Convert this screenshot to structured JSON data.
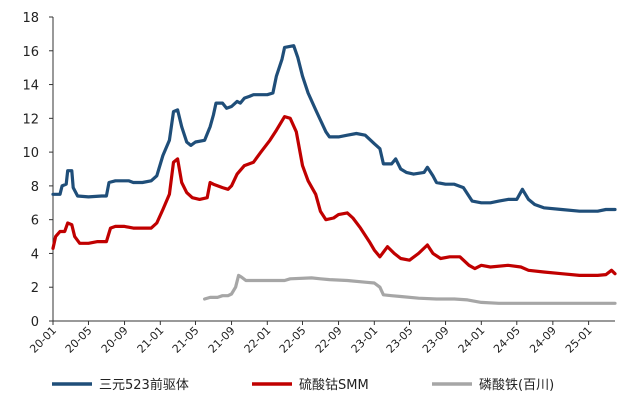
{
  "chart_data": {
    "type": "line",
    "title": "",
    "xlabel": "",
    "ylabel": "",
    "ylim": [
      0,
      18
    ],
    "yticks": [
      0,
      2,
      4,
      6,
      8,
      10,
      12,
      14,
      16,
      18
    ],
    "x_range": [
      "2020-01",
      "2025-04"
    ],
    "xtick_labels": [
      "20-01",
      "20-05",
      "20-09",
      "21-01",
      "21-05",
      "21-09",
      "22-01",
      "22-05",
      "22-09",
      "23-01",
      "23-05",
      "23-09",
      "24-01",
      "24-05",
      "24-09",
      "25-01"
    ],
    "legend_position": "bottom",
    "grid": false,
    "series": [
      {
        "name": "三元523前驱体",
        "color": "#1f4e79",
        "points": [
          [
            "2020-01-01",
            7.5
          ],
          [
            "2020-01-25",
            7.5
          ],
          [
            "2020-02-01",
            8.0
          ],
          [
            "2020-02-15",
            8.1
          ],
          [
            "2020-02-20",
            8.9
          ],
          [
            "2020-03-05",
            8.9
          ],
          [
            "2020-03-10",
            7.9
          ],
          [
            "2020-03-25",
            7.4
          ],
          [
            "2020-05-01",
            7.35
          ],
          [
            "2020-06-15",
            7.4
          ],
          [
            "2020-07-01",
            7.4
          ],
          [
            "2020-07-10",
            8.2
          ],
          [
            "2020-08-01",
            8.3
          ],
          [
            "2020-09-15",
            8.3
          ],
          [
            "2020-10-01",
            8.2
          ],
          [
            "2020-11-01",
            8.2
          ],
          [
            "2020-12-01",
            8.3
          ],
          [
            "2020-12-20",
            8.6
          ],
          [
            "2021-01-10",
            9.8
          ],
          [
            "2021-02-01",
            10.7
          ],
          [
            "2021-02-15",
            12.4
          ],
          [
            "2021-03-01",
            12.5
          ],
          [
            "2021-03-15",
            11.5
          ],
          [
            "2021-04-01",
            10.6
          ],
          [
            "2021-04-15",
            10.4
          ],
          [
            "2021-05-01",
            10.6
          ],
          [
            "2021-06-01",
            10.7
          ],
          [
            "2021-06-20",
            11.5
          ],
          [
            "2021-07-01",
            12.2
          ],
          [
            "2021-07-10",
            12.9
          ],
          [
            "2021-08-01",
            12.9
          ],
          [
            "2021-08-15",
            12.6
          ],
          [
            "2021-09-01",
            12.7
          ],
          [
            "2021-09-20",
            13.0
          ],
          [
            "2021-10-01",
            12.9
          ],
          [
            "2021-10-15",
            13.2
          ],
          [
            "2021-11-01",
            13.3
          ],
          [
            "2021-11-15",
            13.4
          ],
          [
            "2022-01-01",
            13.4
          ],
          [
            "2022-01-20",
            13.5
          ],
          [
            "2022-02-01",
            14.5
          ],
          [
            "2022-02-20",
            15.5
          ],
          [
            "2022-03-01",
            16.2
          ],
          [
            "2022-04-01",
            16.3
          ],
          [
            "2022-04-15",
            15.6
          ],
          [
            "2022-05-01",
            14.5
          ],
          [
            "2022-05-20",
            13.5
          ],
          [
            "2022-06-15",
            12.5
          ],
          [
            "2022-07-01",
            11.9
          ],
          [
            "2022-07-20",
            11.2
          ],
          [
            "2022-08-01",
            10.9
          ],
          [
            "2022-09-01",
            10.9
          ],
          [
            "2022-10-01",
            11.0
          ],
          [
            "2022-11-01",
            11.1
          ],
          [
            "2022-12-01",
            11.0
          ],
          [
            "2023-01-01",
            10.5
          ],
          [
            "2023-01-20",
            10.2
          ],
          [
            "2023-02-01",
            9.3
          ],
          [
            "2023-03-01",
            9.3
          ],
          [
            "2023-03-15",
            9.6
          ],
          [
            "2023-04-01",
            9.0
          ],
          [
            "2023-04-20",
            8.8
          ],
          [
            "2023-05-15",
            8.7
          ],
          [
            "2023-06-20",
            8.8
          ],
          [
            "2023-07-01",
            9.1
          ],
          [
            "2023-07-20",
            8.6
          ],
          [
            "2023-08-01",
            8.2
          ],
          [
            "2023-09-01",
            8.1
          ],
          [
            "2023-10-01",
            8.1
          ],
          [
            "2023-11-01",
            7.9
          ],
          [
            "2023-12-01",
            7.1
          ],
          [
            "2024-01-01",
            7.0
          ],
          [
            "2024-02-01",
            7.0
          ],
          [
            "2024-03-01",
            7.1
          ],
          [
            "2024-04-01",
            7.2
          ],
          [
            "2024-05-01",
            7.2
          ],
          [
            "2024-05-20",
            7.8
          ],
          [
            "2024-06-10",
            7.2
          ],
          [
            "2024-07-01",
            6.9
          ],
          [
            "2024-08-01",
            6.7
          ],
          [
            "2024-10-01",
            6.6
          ],
          [
            "2024-12-01",
            6.5
          ],
          [
            "2025-02-01",
            6.5
          ],
          [
            "2025-03-01",
            6.6
          ],
          [
            "2025-04-01",
            6.6
          ]
        ]
      },
      {
        "name": "硫酸钴SMM",
        "color": "#c00000",
        "points": [
          [
            "2020-01-01",
            4.3
          ],
          [
            "2020-01-10",
            5.0
          ],
          [
            "2020-01-25",
            5.3
          ],
          [
            "2020-02-10",
            5.3
          ],
          [
            "2020-02-20",
            5.8
          ],
          [
            "2020-03-05",
            5.7
          ],
          [
            "2020-03-15",
            5.0
          ],
          [
            "2020-04-01",
            4.6
          ],
          [
            "2020-05-01",
            4.6
          ],
          [
            "2020-06-01",
            4.7
          ],
          [
            "2020-07-01",
            4.7
          ],
          [
            "2020-07-15",
            5.5
          ],
          [
            "2020-08-01",
            5.6
          ],
          [
            "2020-09-01",
            5.6
          ],
          [
            "2020-10-01",
            5.5
          ],
          [
            "2020-12-01",
            5.5
          ],
          [
            "2020-12-20",
            5.8
          ],
          [
            "2021-01-10",
            6.6
          ],
          [
            "2021-02-01",
            7.5
          ],
          [
            "2021-02-15",
            9.4
          ],
          [
            "2021-03-01",
            9.6
          ],
          [
            "2021-03-15",
            8.2
          ],
          [
            "2021-04-01",
            7.6
          ],
          [
            "2021-04-20",
            7.3
          ],
          [
            "2021-05-15",
            7.2
          ],
          [
            "2021-06-10",
            7.3
          ],
          [
            "2021-06-20",
            8.2
          ],
          [
            "2021-07-01",
            8.1
          ],
          [
            "2021-08-01",
            7.9
          ],
          [
            "2021-08-20",
            7.8
          ],
          [
            "2021-09-01",
            8.0
          ],
          [
            "2021-09-20",
            8.7
          ],
          [
            "2021-10-15",
            9.2
          ],
          [
            "2021-11-15",
            9.4
          ],
          [
            "2021-12-10",
            10.0
          ],
          [
            "2022-01-10",
            10.7
          ],
          [
            "2022-02-01",
            11.3
          ],
          [
            "2022-03-01",
            12.1
          ],
          [
            "2022-03-20",
            12.0
          ],
          [
            "2022-04-10",
            11.2
          ],
          [
            "2022-05-01",
            9.2
          ],
          [
            "2022-05-20",
            8.3
          ],
          [
            "2022-06-15",
            7.5
          ],
          [
            "2022-07-01",
            6.5
          ],
          [
            "2022-07-20",
            6.0
          ],
          [
            "2022-08-15",
            6.1
          ],
          [
            "2022-09-01",
            6.3
          ],
          [
            "2022-10-01",
            6.4
          ],
          [
            "2022-10-20",
            6.1
          ],
          [
            "2022-11-15",
            5.5
          ],
          [
            "2022-12-15",
            4.7
          ],
          [
            "2023-01-01",
            4.2
          ],
          [
            "2023-01-20",
            3.8
          ],
          [
            "2023-02-15",
            4.4
          ],
          [
            "2023-03-10",
            4.0
          ],
          [
            "2023-04-01",
            3.7
          ],
          [
            "2023-05-01",
            3.6
          ],
          [
            "2023-06-01",
            4.0
          ],
          [
            "2023-07-01",
            4.5
          ],
          [
            "2023-07-20",
            4.0
          ],
          [
            "2023-08-15",
            3.7
          ],
          [
            "2023-09-15",
            3.8
          ],
          [
            "2023-10-20",
            3.8
          ],
          [
            "2023-11-20",
            3.3
          ],
          [
            "2023-12-10",
            3.1
          ],
          [
            "2024-01-01",
            3.3
          ],
          [
            "2024-02-01",
            3.2
          ],
          [
            "2024-04-01",
            3.3
          ],
          [
            "2024-05-15",
            3.2
          ],
          [
            "2024-06-10",
            3.0
          ],
          [
            "2024-08-01",
            2.9
          ],
          [
            "2024-10-01",
            2.8
          ],
          [
            "2024-12-01",
            2.7
          ],
          [
            "2025-02-01",
            2.7
          ],
          [
            "2025-03-01",
            2.75
          ],
          [
            "2025-03-20",
            3.0
          ],
          [
            "2025-04-01",
            2.8
          ]
        ]
      },
      {
        "name": "磷酸铁(百川)",
        "color": "#a6a6a6",
        "points": [
          [
            "2021-06-01",
            1.3
          ],
          [
            "2021-06-20",
            1.4
          ],
          [
            "2021-07-15",
            1.4
          ],
          [
            "2021-08-01",
            1.5
          ],
          [
            "2021-08-20",
            1.5
          ],
          [
            "2021-09-01",
            1.6
          ],
          [
            "2021-09-15",
            2.0
          ],
          [
            "2021-09-25",
            2.7
          ],
          [
            "2021-10-05",
            2.6
          ],
          [
            "2021-10-20",
            2.4
          ],
          [
            "2021-11-15",
            2.4
          ],
          [
            "2022-01-01",
            2.4
          ],
          [
            "2022-03-01",
            2.4
          ],
          [
            "2022-03-20",
            2.5
          ],
          [
            "2022-06-01",
            2.55
          ],
          [
            "2022-07-01",
            2.5
          ],
          [
            "2022-08-01",
            2.45
          ],
          [
            "2022-10-01",
            2.4
          ],
          [
            "2022-12-01",
            2.3
          ],
          [
            "2023-01-01",
            2.25
          ],
          [
            "2023-01-20",
            2.0
          ],
          [
            "2023-02-01",
            1.55
          ],
          [
            "2023-03-01",
            1.5
          ],
          [
            "2023-04-01",
            1.45
          ],
          [
            "2023-06-01",
            1.35
          ],
          [
            "2023-08-01",
            1.3
          ],
          [
            "2023-10-01",
            1.3
          ],
          [
            "2023-11-15",
            1.25
          ],
          [
            "2024-01-01",
            1.1
          ],
          [
            "2024-03-01",
            1.05
          ],
          [
            "2024-06-01",
            1.05
          ],
          [
            "2024-09-01",
            1.05
          ],
          [
            "2024-12-01",
            1.05
          ],
          [
            "2025-04-01",
            1.05
          ]
        ]
      }
    ]
  }
}
